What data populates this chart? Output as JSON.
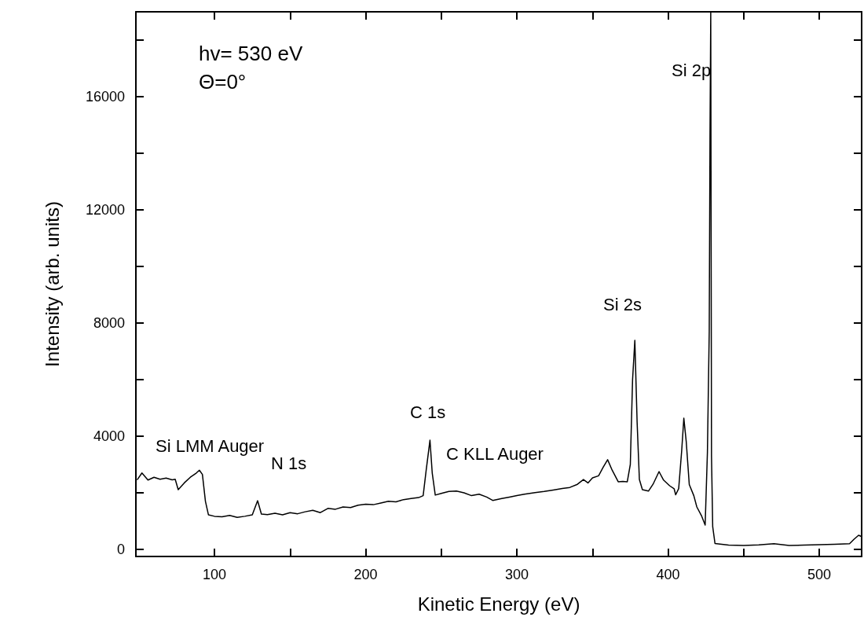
{
  "chart_data": {
    "type": "line",
    "xlabel": "Kinetic Energy (eV)",
    "ylabel": "Intensity (arb. units)",
    "annotations": [
      "hv= 530 eV",
      "Θ=0°",
      "Si LMM Auger",
      "N 1s",
      "C 1s",
      "C KLL Auger",
      "Si 2s",
      "Si 2p"
    ],
    "xlim": [
      48,
      528
    ],
    "ylim": [
      -250,
      19000
    ],
    "xticks": [
      100,
      {
        "value": 150,
        "label": null
      },
      200,
      {
        "value": 250,
        "label": null
      },
      300,
      {
        "value": 350,
        "label": null
      },
      400,
      {
        "value": 450,
        "label": null
      },
      500
    ],
    "yticks": [
      0,
      {
        "value": 2000,
        "label": null
      },
      4000,
      {
        "value": 6000,
        "label": null
      },
      8000,
      {
        "value": 10000,
        "label": null
      },
      12000,
      {
        "value": 14000,
        "label": null
      },
      16000,
      {
        "value": 18000,
        "label": null
      }
    ],
    "grid": false,
    "marker": "none",
    "line_style": "solid",
    "series": [
      {
        "color": "#000000",
        "x": [
          49,
          52,
          56,
          60,
          64,
          68,
          72,
          74,
          76,
          80,
          84,
          88,
          90,
          92,
          94,
          96,
          100,
          105,
          110,
          115,
          120,
          125,
          128.5,
          131,
          135,
          140,
          145,
          150,
          155,
          160,
          165,
          170,
          175,
          180,
          185,
          190,
          195,
          200,
          205,
          210,
          215,
          220,
          225,
          230,
          235,
          238,
          240,
          242.5,
          244,
          246,
          250,
          255,
          260,
          265,
          270,
          275,
          280,
          284,
          290,
          295,
          300,
          305,
          312,
          318,
          324,
          330,
          335,
          340,
          344,
          347,
          350,
          354,
          357,
          360,
          363,
          367,
          370,
          373,
          375,
          376.5,
          378,
          379.5,
          381,
          383,
          387,
          390,
          394,
          397,
          401,
          404,
          405,
          407,
          409,
          410.4,
          412,
          414,
          417,
          419,
          422,
          424.5,
          426,
          427.2,
          427.7,
          428.2,
          428.7,
          429.5,
          431,
          440,
          450,
          460,
          470,
          480,
          490,
          500,
          510,
          520,
          523,
          526,
          528
        ],
        "values": [
          2470,
          2700,
          2450,
          2550,
          2480,
          2520,
          2460,
          2480,
          2110,
          2350,
          2550,
          2700,
          2800,
          2650,
          1700,
          1220,
          1170,
          1150,
          1200,
          1130,
          1170,
          1220,
          1720,
          1250,
          1230,
          1280,
          1220,
          1300,
          1260,
          1330,
          1380,
          1300,
          1450,
          1420,
          1500,
          1480,
          1560,
          1600,
          1580,
          1640,
          1700,
          1680,
          1760,
          1800,
          1830,
          1900,
          2800,
          3860,
          2700,
          1920,
          1980,
          2050,
          2060,
          2000,
          1900,
          1950,
          1850,
          1730,
          1800,
          1850,
          1900,
          1950,
          2010,
          2050,
          2100,
          2150,
          2190,
          2300,
          2470,
          2350,
          2530,
          2600,
          2900,
          3170,
          2800,
          2390,
          2400,
          2390,
          3000,
          6000,
          7390,
          4500,
          2470,
          2110,
          2060,
          2300,
          2750,
          2450,
          2250,
          2140,
          1930,
          2150,
          3500,
          4640,
          3800,
          2290,
          1900,
          1500,
          1200,
          860,
          3430,
          7710,
          14570,
          19000,
          3290,
          800,
          210,
          150,
          140,
          160,
          200,
          140,
          150,
          170,
          180,
          200,
          360,
          500,
          450
        ]
      }
    ]
  }
}
